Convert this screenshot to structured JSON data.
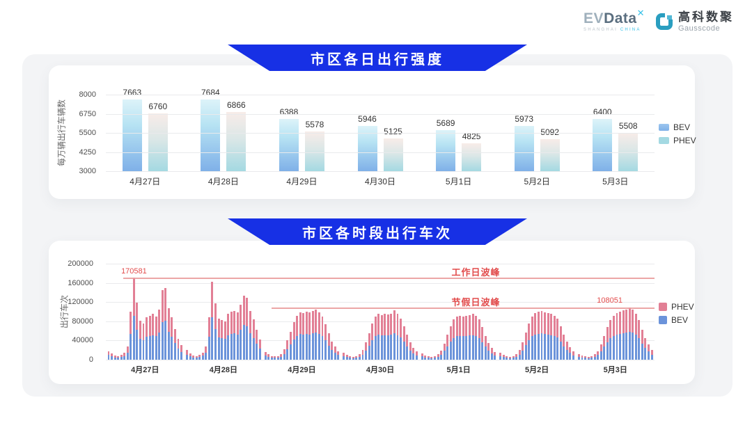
{
  "header": {
    "evdata": {
      "prefix": "EV",
      "suffix": "Data",
      "superscript": "✕",
      "sub_left": "SHANGHAI",
      "sub_right": "CHINA"
    },
    "gausscode": {
      "cn": "高科数聚",
      "en": "Gausscode"
    }
  },
  "colors": {
    "banner_blue": "#1730E5",
    "panel_bg": "#F3F4F6",
    "bev_gradient_top": "#DDF3F9",
    "bev_gradient_bottom": "#7FB0E8",
    "phev_gradient_top": "#F8ECE8",
    "phev_gradient_bottom": "#A4D9E2",
    "bev_flat": "#6B93DA",
    "phev_flat": "#E27F95",
    "annotation_red": "#E24C4C",
    "line_red": "#EA9C9C"
  },
  "chart_data": [
    {
      "type": "bar",
      "title": "市区各日出行强度",
      "ylabel": "每万辆出行车辆数",
      "xlabel": "",
      "ylim": [
        3000,
        8000
      ],
      "y_ticks": [
        3000,
        4250,
        5500,
        6750,
        8000
      ],
      "grid": true,
      "legend_position": "right",
      "categories": [
        "4月27日",
        "4月28日",
        "4月29日",
        "4月30日",
        "5月1日",
        "5月2日",
        "5月3日"
      ],
      "series": [
        {
          "name": "BEV",
          "values": [
            7663,
            7684,
            6388,
            5946,
            5689,
            5973,
            6400
          ]
        },
        {
          "name": "PHEV",
          "values": [
            6760,
            6866,
            5578,
            5125,
            4825,
            5092,
            5508
          ]
        }
      ]
    },
    {
      "type": "bar",
      "subtype": "stacked-hourly",
      "title": "市区各时段出行车次",
      "ylabel": "出行车次",
      "xlabel": "",
      "ylim": [
        0,
        200000
      ],
      "y_ticks": [
        0,
        40000,
        80000,
        120000,
        160000,
        200000
      ],
      "grid": true,
      "legend": [
        "PHEV",
        "BEV"
      ],
      "legend_position": "right",
      "annotations": {
        "workday": {
          "label": "工作日波峰",
          "value": 170581,
          "value_label": "170581",
          "line_start_pct": 3.2
        },
        "holiday": {
          "label": "节假日波峰",
          "value": 108051,
          "value_label": "108051",
          "line_start_pct": 30.2
        }
      },
      "days": [
        {
          "date": "4月27日",
          "bev": [
            9700,
            7000,
            4900,
            4300,
            5400,
            7600,
            14600,
            54000,
            91000,
            63000,
            43700,
            41000,
            47500,
            49700,
            51300,
            48600,
            56700,
            78300,
            80500,
            58300,
            47500,
            34600,
            23800,
            16200
          ],
          "phev": [
            8300,
            6000,
            4100,
            3700,
            4600,
            6400,
            12400,
            46000,
            79581,
            56000,
            37300,
            35000,
            40500,
            42300,
            43700,
            41400,
            48300,
            66700,
            68500,
            49700,
            40500,
            29400,
            20200,
            13800
          ]
        },
        {
          "date": "4月28日",
          "bev": [
            10800,
            7000,
            4900,
            4300,
            5400,
            8100,
            15100,
            47500,
            88000,
            63200,
            46400,
            44800,
            43200,
            51300,
            54000,
            55100,
            52900,
            62100,
            72400,
            69700,
            54500,
            45400,
            33500,
            22700
          ],
          "phev": [
            9200,
            6000,
            4100,
            3700,
            4600,
            6900,
            12900,
            40500,
            75000,
            53800,
            39600,
            38200,
            36800,
            43700,
            46000,
            46900,
            45100,
            52900,
            61600,
            59300,
            46500,
            38600,
            28500,
            19300
          ]
        },
        {
          "date": "4月29日",
          "bev": [
            8600,
            5900,
            4300,
            3800,
            4300,
            6500,
            11900,
            21600,
            31300,
            42100,
            49700,
            53500,
            52400,
            54000,
            52900,
            55100,
            56700,
            53500,
            48600,
            40000,
            29700,
            20500,
            14600,
            9700
          ],
          "phev": [
            7400,
            5100,
            3700,
            3200,
            3700,
            5500,
            10100,
            18400,
            26700,
            35900,
            42300,
            45500,
            44600,
            46000,
            45100,
            46900,
            48300,
            45500,
            41400,
            34000,
            25300,
            17500,
            12400,
            8300
          ]
        },
        {
          "date": "4月30日",
          "bev": [
            7600,
            5400,
            3800,
            3500,
            4300,
            6500,
            10800,
            19400,
            29700,
            41000,
            48600,
            51800,
            50200,
            51300,
            50800,
            51800,
            55600,
            51300,
            46400,
            37800,
            28100,
            19400,
            13500,
            9200
          ],
          "phev": [
            6400,
            4600,
            3200,
            3000,
            3700,
            5500,
            9200,
            16600,
            25300,
            35000,
            41400,
            44200,
            42800,
            43700,
            43200,
            44200,
            47400,
            43700,
            39600,
            32200,
            23900,
            16600,
            11500,
            7800
          ]
        },
        {
          "date": "5月1日",
          "bev": [
            7000,
            4900,
            3800,
            3200,
            4100,
            5900,
            10300,
            18400,
            28100,
            37800,
            45400,
            48600,
            49700,
            48600,
            49100,
            50200,
            51300,
            49700,
            45400,
            36700,
            27000,
            18900,
            13000,
            8600
          ],
          "phev": [
            6000,
            4100,
            3200,
            2800,
            3400,
            5100,
            8700,
            15600,
            23900,
            32200,
            38600,
            41400,
            42300,
            41400,
            41900,
            42800,
            43700,
            42300,
            38600,
            31300,
            23000,
            16100,
            11000,
            7400
          ]
        },
        {
          "date": "5月2日",
          "bev": [
            7600,
            5400,
            3800,
            3500,
            4300,
            6500,
            10800,
            19400,
            30200,
            41000,
            48600,
            52400,
            54000,
            55100,
            53500,
            52400,
            51300,
            49700,
            45900,
            37800,
            28100,
            20000,
            14000,
            9200
          ],
          "phev": [
            6400,
            4600,
            3200,
            3000,
            3700,
            5500,
            9200,
            16600,
            25800,
            35000,
            41400,
            44600,
            46000,
            46900,
            45500,
            44600,
            43700,
            42300,
            39100,
            32200,
            23900,
            17000,
            12000,
            7800
          ]
        },
        {
          "date": "5月3日",
          "bev": [
            6500,
            4900,
            3800,
            3500,
            4300,
            5900,
            9700,
            17300,
            27000,
            36700,
            44300,
            49700,
            52400,
            54000,
            55600,
            56700,
            58000,
            56200,
            51800,
            44300,
            33500,
            24300,
            17300,
            10800
          ],
          "phev": [
            5500,
            4100,
            3200,
            3000,
            3700,
            5100,
            8300,
            14700,
            23000,
            31300,
            37700,
            42300,
            44600,
            46000,
            47400,
            48300,
            50051,
            47800,
            44200,
            37700,
            28500,
            20700,
            14700,
            9200
          ]
        }
      ]
    }
  ]
}
